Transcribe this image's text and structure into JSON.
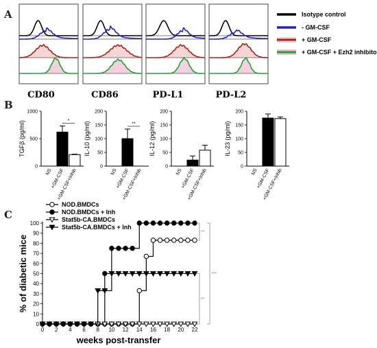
{
  "panel_labels": {
    "a": "A",
    "b": "B",
    "c": "C"
  },
  "panel_a": {
    "markers": [
      "CD80",
      "CD86",
      "PD-L1",
      "PD-L2"
    ],
    "legend": [
      {
        "label": "Isotype control",
        "color": "#000000"
      },
      {
        "label": "- GM-CSF",
        "color": "#1f1fd0"
      },
      {
        "label": "+ GM-CSF",
        "color": "#b02010"
      },
      {
        "label": "+ GM-CSF + Ezh2 inhibitor",
        "color": "#20a030"
      }
    ]
  },
  "chart_data": [
    {
      "type": "bar",
      "ylabel": "TGFβ (pg/ml)",
      "ylim": [
        0,
        1000
      ],
      "yticks": [
        "0",
        "500",
        "1000"
      ],
      "categories": [
        "NS",
        "+GM-CSF",
        "+GM-CSF+Inhib"
      ],
      "values": [
        0,
        620,
        210
      ],
      "errors": [
        0,
        110,
        8
      ],
      "fills": [
        "#000000",
        "#000000",
        "#ffffff"
      ],
      "significance": "*"
    },
    {
      "type": "bar",
      "ylabel": "IL-10 (pg/ml)",
      "ylim": [
        0,
        200
      ],
      "yticks": [
        "0",
        "50",
        "100",
        "150",
        "200"
      ],
      "categories": [
        "NS",
        "+GM-CSF",
        "+GM-CSF+Inhib"
      ],
      "values": [
        0,
        100,
        0
      ],
      "errors": [
        0,
        35,
        0
      ],
      "fills": [
        "#000000",
        "#000000",
        "#ffffff"
      ],
      "significance": "**"
    },
    {
      "type": "bar",
      "ylabel": "IL-12 (pg/ml)",
      "ylim": [
        0,
        200
      ],
      "yticks": [
        "0",
        "50",
        "100",
        "150",
        "200"
      ],
      "categories": [
        "NS",
        "+GM-CSF",
        "+GM-CSF+Inhib"
      ],
      "values": [
        0,
        22,
        58
      ],
      "errors": [
        0,
        15,
        18
      ],
      "fills": [
        "#000000",
        "#000000",
        "#ffffff"
      ],
      "significance": ""
    },
    {
      "type": "bar",
      "ylabel": "IL-23 (pg/ml)",
      "ylim": [
        0,
        200
      ],
      "yticks": [
        "0",
        "50",
        "100",
        "150",
        "200"
      ],
      "categories": [
        "NS",
        "+GM-CSF",
        "+GM-CSF+Inhib"
      ],
      "values": [
        0,
        175,
        173
      ],
      "errors": [
        0,
        15,
        6
      ],
      "fills": [
        "#000000",
        "#000000",
        "#ffffff"
      ],
      "significance": ""
    },
    {
      "type": "line",
      "xlabel": "weeks post-transfer",
      "ylabel": "% of diabetic mice",
      "xlim": [
        0,
        22
      ],
      "ylim": [
        0,
        100
      ],
      "xticks": [
        0,
        2,
        4,
        6,
        8,
        10,
        12,
        14,
        16,
        18,
        20,
        22
      ],
      "yticks": [
        0,
        10,
        20,
        30,
        40,
        50,
        60,
        70,
        80,
        90,
        100
      ],
      "series": [
        {
          "name": "NOD.BMDCs",
          "marker": "circle-open",
          "x": [
            0,
            1,
            2,
            3,
            4,
            5,
            6,
            7,
            8,
            9,
            10,
            11,
            12,
            13,
            14,
            15,
            16,
            17,
            18,
            19,
            20,
            21,
            22
          ],
          "y": [
            0,
            0,
            0,
            0,
            0,
            0,
            0,
            0,
            0,
            0,
            0,
            0,
            0,
            0,
            33,
            67,
            83,
            83,
            83,
            83,
            83,
            83,
            83
          ]
        },
        {
          "name": "NOD.BMDCs + Inh",
          "marker": "circle-filled",
          "x": [
            0,
            1,
            2,
            3,
            4,
            5,
            6,
            7,
            8,
            9,
            10,
            11,
            12,
            13,
            14,
            15,
            16,
            17,
            18,
            19,
            20,
            21,
            22
          ],
          "y": [
            0,
            0,
            0,
            0,
            0,
            0,
            0,
            0,
            0,
            50,
            75,
            75,
            75,
            75,
            100,
            100,
            100,
            100,
            100,
            100,
            100,
            100,
            100
          ]
        },
        {
          "name": "Stat5b-CA.BMDCs",
          "marker": "triangle-open",
          "x": [
            0,
            1,
            2,
            3,
            4,
            5,
            6,
            7,
            8,
            9,
            10,
            11,
            12,
            13,
            14,
            15,
            16,
            17,
            18,
            19,
            20,
            21,
            22
          ],
          "y": [
            0,
            0,
            0,
            0,
            0,
            0,
            0,
            0,
            0,
            0,
            0,
            0,
            0,
            0,
            0,
            0,
            0,
            0,
            0,
            0,
            0,
            0,
            0
          ]
        },
        {
          "name": "Stat5b-CA.BMDCs + Inh",
          "marker": "triangle-filled",
          "x": [
            0,
            1,
            2,
            3,
            4,
            5,
            6,
            7,
            8,
            9,
            10,
            11,
            12,
            13,
            14,
            15,
            16,
            17,
            18,
            19,
            20,
            21,
            22
          ],
          "y": [
            0,
            0,
            0,
            0,
            0,
            0,
            0,
            0,
            33,
            33,
            50,
            50,
            50,
            50,
            50,
            50,
            50,
            50,
            50,
            50,
            50,
            50,
            50
          ]
        }
      ],
      "significance": [
        "**",
        "**",
        "***"
      ]
    }
  ]
}
